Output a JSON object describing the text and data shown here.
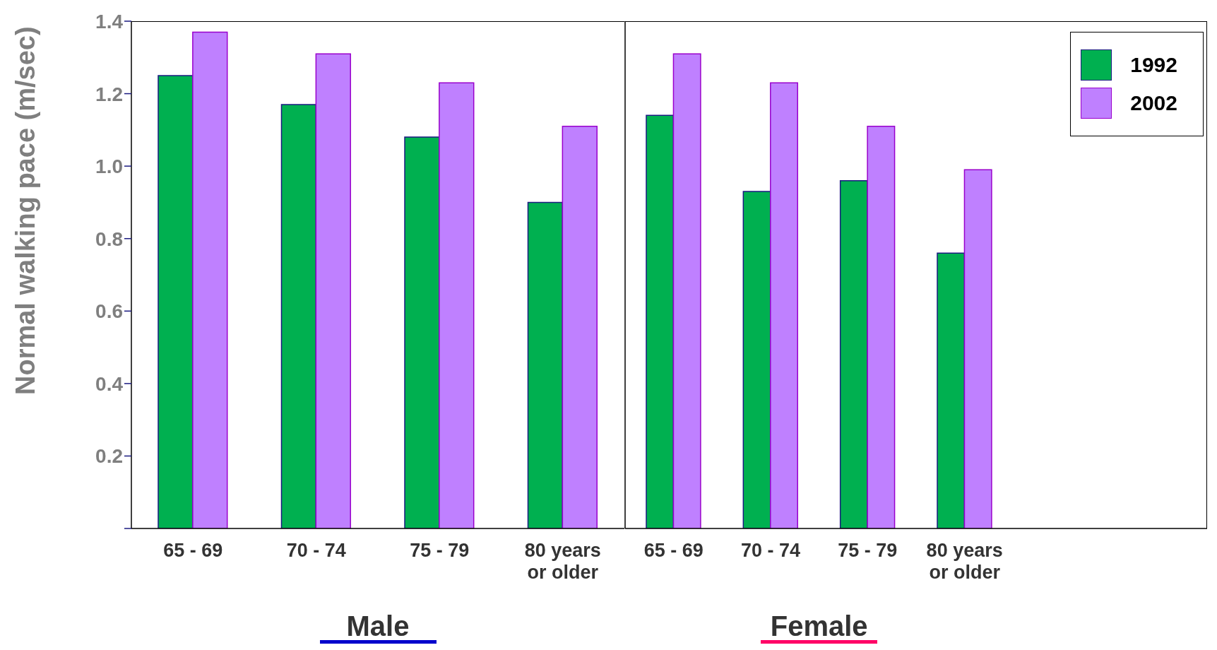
{
  "chart_data": [
    {
      "type": "bar",
      "ylabel": "Normal walking pace (m/sec)",
      "xlabel": "Male",
      "categories": [
        "65 - 69",
        "70 - 74",
        "75 - 79",
        "80 years or older"
      ],
      "series": [
        {
          "color": "#00b050",
          "values": [
            1.25,
            1.17,
            1.08,
            0.9
          ]
        },
        {
          "color": "#bf80ff",
          "values": [
            1.37,
            1.31,
            1.23,
            1.11
          ]
        }
      ],
      "ylim": [
        0,
        1.4
      ],
      "yticks": [
        {
          "value": 0,
          "label": null
        },
        0.2,
        0.4,
        0.6,
        0.8,
        {
          "value": 1,
          "label": "1.0"
        },
        1.2,
        1.4
      ],
      "grid": false
    },
    {
      "type": "bar",
      "xlabel": "Female",
      "categories": [
        "65 - 69",
        "70 - 74",
        "75 - 79",
        "80 years or older",
        null,
        null
      ],
      "series": [
        {
          "name": "1992",
          "color": "#00b050",
          "values": [
            1.14,
            0.93,
            0.96,
            0.76,
            null,
            null
          ]
        },
        {
          "name": "2002",
          "color": "#bf80ff",
          "values": [
            1.31,
            1.23,
            1.11,
            0.99,
            null,
            null
          ]
        }
      ],
      "ylim": [
        0,
        1.4
      ],
      "tick_labels": "x",
      "legend": "top right",
      "grid": false
    }
  ]
}
